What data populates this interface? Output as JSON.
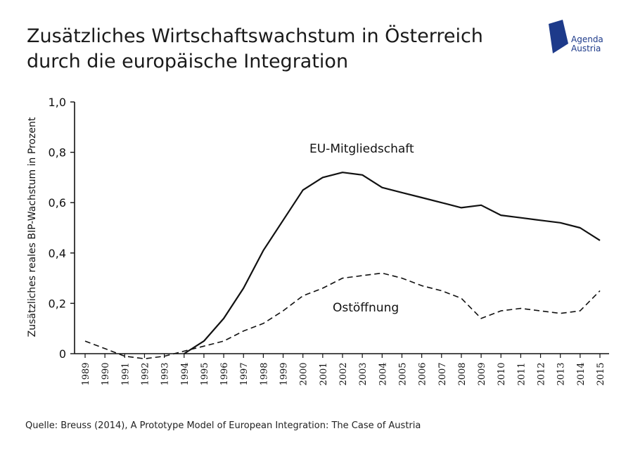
{
  "header": {
    "title_line1": "Zusätzliches Wirtschaftswachstum in Österreich",
    "title_line2": "durch die europäische Integration"
  },
  "logo": {
    "line1": "Agenda",
    "line2": "Austria",
    "color": "#1d3a8a"
  },
  "source": "Quelle: Breuss (2014), A Prototype Model of European Integration: The Case of Austria",
  "chart_data": {
    "type": "line",
    "title": "Zusätzliches Wirtschaftswachstum in Österreich durch die europäische Integration",
    "ylabel": "Zusätzliches reales BIP-Wachstum in Prozent",
    "xlabel": "",
    "ylim": [
      0,
      1.0
    ],
    "yticks": [
      {
        "value": 0,
        "label": "0"
      },
      {
        "value": 0.2,
        "label": "0,2"
      },
      {
        "value": 0.4,
        "label": "0,4"
      },
      {
        "value": 0.6,
        "label": "0,6"
      },
      {
        "value": 0.8,
        "label": "0,8"
      },
      {
        "value": 1.0,
        "label": "1,0"
      }
    ],
    "categories": [
      "1989",
      "1990",
      "1991",
      "1992",
      "1993",
      "1994",
      "1995",
      "1996",
      "1997",
      "1998",
      "1999",
      "2000",
      "2001",
      "2002",
      "2003",
      "2004",
      "2005",
      "2006",
      "2007",
      "2008",
      "2009",
      "2010",
      "2011",
      "2012",
      "2013",
      "2014",
      "2015"
    ],
    "grid": false,
    "series": [
      {
        "name": "EU-Mitgliedschaft",
        "style": "solid",
        "color": "#111111",
        "values": [
          null,
          null,
          null,
          null,
          null,
          0.0,
          0.05,
          0.14,
          0.26,
          0.41,
          0.53,
          0.65,
          0.7,
          0.72,
          0.71,
          0.66,
          0.64,
          0.62,
          0.6,
          0.58,
          0.59,
          0.55,
          0.54,
          0.53,
          0.52,
          0.5,
          0.45
        ]
      },
      {
        "name": "Ostöffnung",
        "style": "dashed",
        "color": "#111111",
        "values": [
          0.05,
          0.02,
          -0.01,
          -0.02,
          -0.01,
          0.01,
          0.03,
          0.05,
          0.09,
          0.12,
          0.17,
          0.23,
          0.26,
          0.3,
          0.31,
          0.32,
          0.3,
          0.27,
          0.25,
          0.22,
          0.14,
          0.17,
          0.18,
          0.17,
          0.16,
          0.17,
          0.25
        ]
      }
    ]
  }
}
